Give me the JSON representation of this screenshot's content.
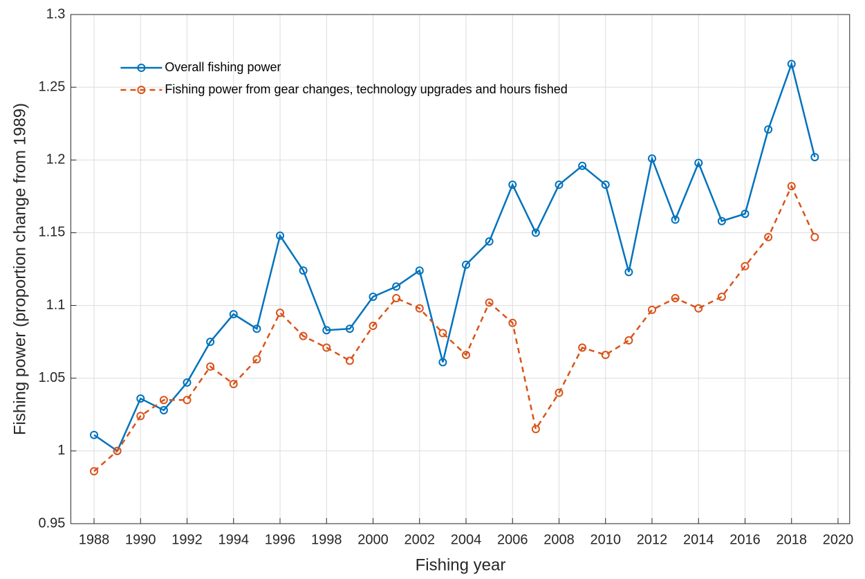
{
  "chart_data": {
    "type": "line",
    "xlabel": "Fishing year",
    "ylabel": "Fishing power (proportion change from 1989)",
    "x": [
      1988,
      1989,
      1990,
      1991,
      1992,
      1993,
      1994,
      1995,
      1996,
      1997,
      1998,
      1999,
      2000,
      2001,
      2002,
      2003,
      2004,
      2005,
      2006,
      2007,
      2008,
      2009,
      2010,
      2011,
      2012,
      2013,
      2014,
      2015,
      2016,
      2017,
      2018,
      2019
    ],
    "series": [
      {
        "name": "Overall fishing power",
        "color": "#0072BD",
        "dashed": false,
        "values": [
          1.011,
          1.0,
          1.036,
          1.028,
          1.047,
          1.075,
          1.094,
          1.084,
          1.148,
          1.124,
          1.083,
          1.084,
          1.106,
          1.113,
          1.124,
          1.061,
          1.128,
          1.144,
          1.183,
          1.15,
          1.183,
          1.196,
          1.183,
          1.123,
          1.201,
          1.159,
          1.198,
          1.158,
          1.163,
          1.221,
          1.266,
          1.202
        ]
      },
      {
        "name": "Fishing power from gear changes, technology upgrades and hours fished",
        "color": "#D95319",
        "dashed": true,
        "values": [
          0.986,
          1.0,
          1.024,
          1.035,
          1.035,
          1.058,
          1.046,
          1.063,
          1.095,
          1.079,
          1.071,
          1.062,
          1.086,
          1.105,
          1.098,
          1.081,
          1.066,
          1.102,
          1.088,
          1.015,
          1.04,
          1.071,
          1.066,
          1.076,
          1.097,
          1.105,
          1.098,
          1.106,
          1.127,
          1.147,
          1.182,
          1.147
        ]
      }
    ],
    "xlim": [
      1987,
      2020.5
    ],
    "xticks": [
      1988,
      1990,
      1992,
      1994,
      1996,
      1998,
      2000,
      2002,
      2004,
      2006,
      2008,
      2010,
      2012,
      2014,
      2016,
      2018,
      2020
    ],
    "ylim": [
      0.95,
      1.3
    ],
    "yticks": [
      0.95,
      1,
      1.05,
      1.1,
      1.15,
      1.2,
      1.25,
      1.3
    ],
    "grid": true,
    "legend": "upper left"
  }
}
